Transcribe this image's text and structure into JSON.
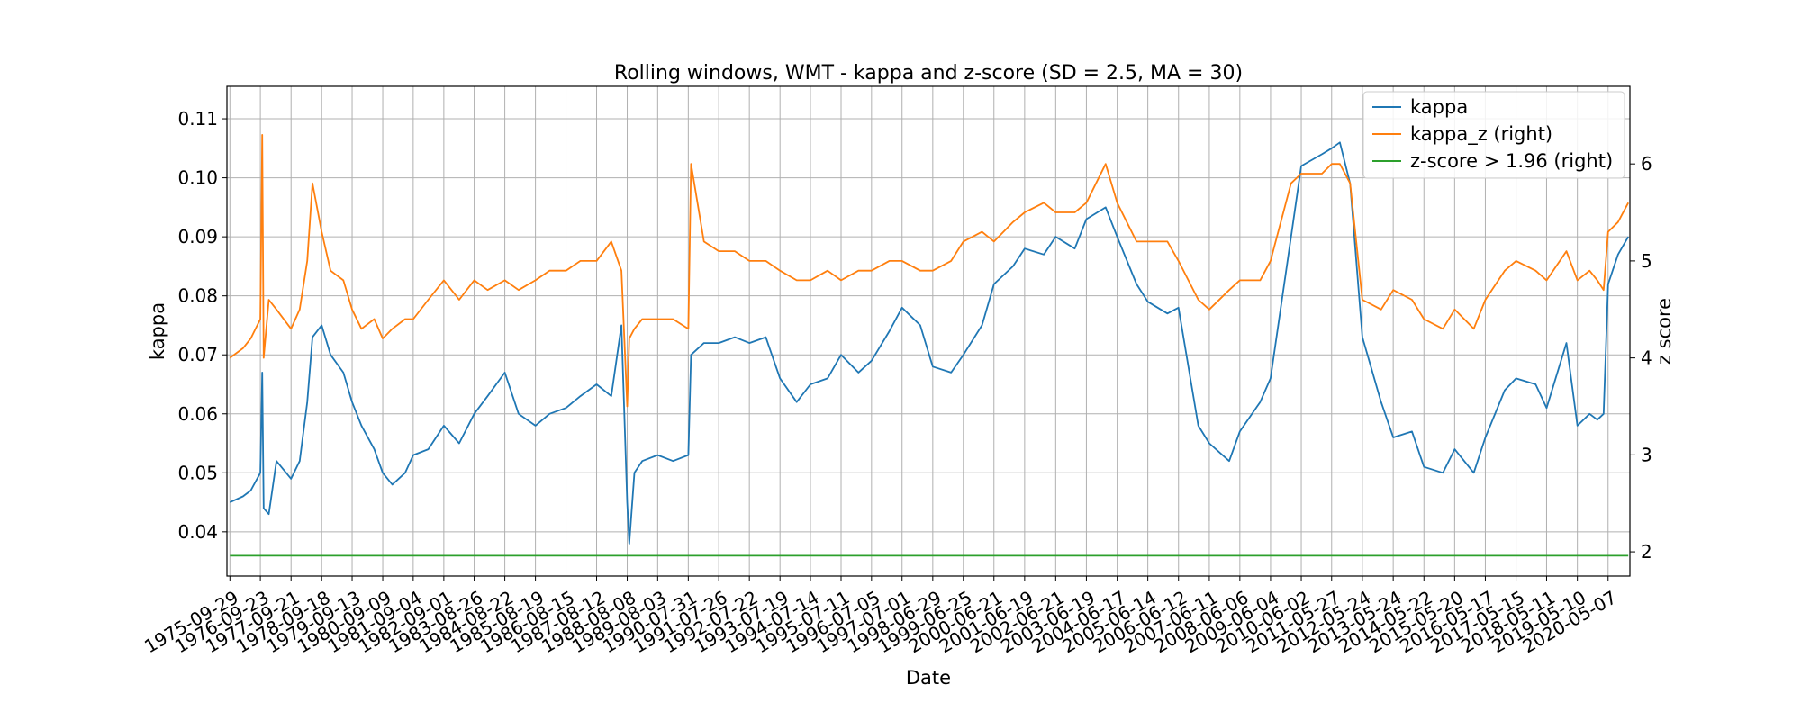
{
  "chart_data": {
    "type": "line",
    "title": "Rolling windows, WMT - kappa and z-score (SD = 2.5, MA = 30)",
    "xlabel": "Date",
    "ylabel": "kappa",
    "ylabel_right": "z score",
    "grid": true,
    "legend_position": "top-right",
    "ylim": [
      0.0325,
      0.1155
    ],
    "ylim_right": [
      1.75,
      6.8
    ],
    "yticks": [
      "0.04",
      "0.05",
      "0.06",
      "0.07",
      "0.08",
      "0.09",
      "0.10",
      "0.11"
    ],
    "yticks_right": [
      "2",
      "3",
      "4",
      "5",
      "6"
    ],
    "xticks": [
      "1975-09-29",
      "1976-09-23",
      "1977-09-21",
      "1978-09-18",
      "1979-09-13",
      "1980-09-09",
      "1981-09-04",
      "1982-09-01",
      "1983-08-26",
      "1984-08-22",
      "1985-08-19",
      "1986-08-15",
      "1987-08-12",
      "1988-08-08",
      "1989-08-03",
      "1990-07-31",
      "1991-07-26",
      "1992-07-22",
      "1993-07-19",
      "1994-07-14",
      "1995-07-11",
      "1996-07-05",
      "1997-07-01",
      "1998-06-29",
      "1999-06-25",
      "2000-06-21",
      "2001-06-19",
      "2002-06-21",
      "2003-06-19",
      "2004-06-17",
      "2005-06-14",
      "2006-06-12",
      "2007-06-11",
      "2008-06-06",
      "2009-06-04",
      "2010-06-02",
      "2011-05-27",
      "2012-05-24",
      "2013-05-24",
      "2014-05-22",
      "2015-05-20",
      "2016-05-17",
      "2017-05-15",
      "2018-05-11",
      "2019-05-10",
      "2020-05-07"
    ],
    "series": [
      {
        "name": "kappa",
        "axis": "left",
        "color": "#1f77b4",
        "x": [
          "1975-09-29",
          "1976-03-01",
          "1976-06-01",
          "1976-09-23",
          "1976-10-15",
          "1976-11-01",
          "1977-01-01",
          "1977-04-01",
          "1977-09-21",
          "1978-01-01",
          "1978-04-01",
          "1978-06-01",
          "1978-09-18",
          "1979-01-01",
          "1979-06-01",
          "1979-09-13",
          "1980-01-01",
          "1980-06-01",
          "1980-09-09",
          "1981-01-01",
          "1981-06-01",
          "1981-09-04",
          "1982-03-01",
          "1982-09-01",
          "1983-03-01",
          "1983-08-26",
          "1984-02-01",
          "1984-08-22",
          "1985-02-01",
          "1985-08-19",
          "1986-02-01",
          "1986-08-15",
          "1987-02-01",
          "1987-08-12",
          "1988-02-01",
          "1988-06-01",
          "1988-08-08",
          "1988-09-01",
          "1988-11-01",
          "1989-02-01",
          "1989-08-03",
          "1990-02-01",
          "1990-07-31",
          "1990-09-01",
          "1991-02-01",
          "1991-07-26",
          "1992-02-01",
          "1992-07-22",
          "1993-02-01",
          "1993-07-19",
          "1994-02-01",
          "1994-07-14",
          "1995-02-01",
          "1995-07-11",
          "1996-02-01",
          "1996-07-05",
          "1997-02-01",
          "1997-07-01",
          "1998-02-01",
          "1998-06-29",
          "1999-02-01",
          "1999-06-25",
          "2000-02-01",
          "2000-06-21",
          "2001-02-01",
          "2001-06-19",
          "2002-02-01",
          "2002-06-21",
          "2003-02-01",
          "2003-06-19",
          "2004-02-01",
          "2004-06-17",
          "2005-02-01",
          "2005-06-14",
          "2006-02-01",
          "2006-06-12",
          "2007-02-01",
          "2007-06-11",
          "2008-02-01",
          "2008-06-06",
          "2009-02-01",
          "2009-06-04",
          "2010-02-01",
          "2010-06-02",
          "2011-02-01",
          "2011-05-27",
          "2011-09-01",
          "2012-01-01",
          "2012-05-24",
          "2013-01-01",
          "2013-05-24",
          "2014-01-01",
          "2014-05-22",
          "2015-01-01",
          "2015-05-20",
          "2016-01-01",
          "2016-05-17",
          "2017-01-01",
          "2017-05-15",
          "2018-01-01",
          "2018-05-11",
          "2019-01-01",
          "2019-05-10",
          "2019-10-01",
          "2020-01-01",
          "2020-03-15",
          "2020-05-07",
          "2020-09-01",
          "2021-01-01"
        ],
        "y": [
          0.045,
          0.046,
          0.047,
          0.05,
          0.067,
          0.044,
          0.043,
          0.052,
          0.049,
          0.052,
          0.062,
          0.073,
          0.075,
          0.07,
          0.067,
          0.062,
          0.058,
          0.054,
          0.05,
          0.048,
          0.05,
          0.053,
          0.054,
          0.058,
          0.055,
          0.06,
          0.063,
          0.067,
          0.06,
          0.058,
          0.06,
          0.061,
          0.063,
          0.065,
          0.063,
          0.075,
          0.045,
          0.038,
          0.05,
          0.052,
          0.053,
          0.052,
          0.053,
          0.07,
          0.072,
          0.072,
          0.073,
          0.072,
          0.073,
          0.066,
          0.062,
          0.065,
          0.066,
          0.07,
          0.067,
          0.069,
          0.074,
          0.078,
          0.075,
          0.068,
          0.067,
          0.07,
          0.075,
          0.082,
          0.085,
          0.088,
          0.087,
          0.09,
          0.088,
          0.093,
          0.095,
          0.09,
          0.082,
          0.079,
          0.077,
          0.078,
          0.058,
          0.055,
          0.052,
          0.057,
          0.062,
          0.066,
          0.09,
          0.102,
          0.104,
          0.105,
          0.106,
          0.099,
          0.073,
          0.062,
          0.056,
          0.057,
          0.051,
          0.05,
          0.054,
          0.05,
          0.056,
          0.064,
          0.066,
          0.065,
          0.061,
          0.072,
          0.058,
          0.06,
          0.059,
          0.06,
          0.082,
          0.087,
          0.09
        ]
      },
      {
        "name": "kappa_z (right)",
        "axis": "right",
        "color": "#ff7f0e",
        "x": [
          "1975-09-29",
          "1976-03-01",
          "1976-06-01",
          "1976-09-23",
          "1976-10-15",
          "1976-11-01",
          "1977-01-01",
          "1977-04-01",
          "1977-09-21",
          "1978-01-01",
          "1978-04-01",
          "1978-06-01",
          "1978-09-18",
          "1979-01-01",
          "1979-06-01",
          "1979-09-13",
          "1980-01-01",
          "1980-06-01",
          "1980-09-09",
          "1981-01-01",
          "1981-06-01",
          "1981-09-04",
          "1982-03-01",
          "1982-09-01",
          "1983-03-01",
          "1983-08-26",
          "1984-02-01",
          "1984-08-22",
          "1985-02-01",
          "1985-08-19",
          "1986-02-01",
          "1986-08-15",
          "1987-02-01",
          "1987-08-12",
          "1988-02-01",
          "1988-06-01",
          "1988-08-08",
          "1988-09-01",
          "1988-11-01",
          "1989-02-01",
          "1989-08-03",
          "1990-02-01",
          "1990-07-31",
          "1990-09-01",
          "1991-02-01",
          "1991-07-26",
          "1992-02-01",
          "1992-07-22",
          "1993-02-01",
          "1993-07-19",
          "1994-02-01",
          "1994-07-14",
          "1995-02-01",
          "1995-07-11",
          "1996-02-01",
          "1996-07-05",
          "1997-02-01",
          "1997-07-01",
          "1998-02-01",
          "1998-06-29",
          "1999-02-01",
          "1999-06-25",
          "2000-02-01",
          "2000-06-21",
          "2001-02-01",
          "2001-06-19",
          "2002-02-01",
          "2002-06-21",
          "2003-02-01",
          "2003-06-19",
          "2004-02-01",
          "2004-06-17",
          "2005-02-01",
          "2005-06-14",
          "2006-02-01",
          "2006-06-12",
          "2007-02-01",
          "2007-06-11",
          "2008-02-01",
          "2008-06-06",
          "2009-02-01",
          "2009-06-04",
          "2010-02-01",
          "2010-06-02",
          "2011-02-01",
          "2011-05-27",
          "2011-09-01",
          "2012-01-01",
          "2012-05-24",
          "2013-01-01",
          "2013-05-24",
          "2014-01-01",
          "2014-05-22",
          "2015-01-01",
          "2015-05-20",
          "2016-01-01",
          "2016-05-17",
          "2017-01-01",
          "2017-05-15",
          "2018-01-01",
          "2018-05-11",
          "2019-01-01",
          "2019-05-10",
          "2019-10-01",
          "2020-01-01",
          "2020-03-15",
          "2020-05-07",
          "2020-09-01",
          "2021-01-01"
        ],
        "y": [
          4.0,
          4.1,
          4.2,
          4.4,
          6.3,
          4.0,
          4.6,
          4.5,
          4.3,
          4.5,
          5.0,
          5.8,
          5.3,
          4.9,
          4.8,
          4.5,
          4.3,
          4.4,
          4.2,
          4.3,
          4.4,
          4.4,
          4.6,
          4.8,
          4.6,
          4.8,
          4.7,
          4.8,
          4.7,
          4.8,
          4.9,
          4.9,
          5.0,
          5.0,
          5.2,
          4.9,
          3.5,
          4.2,
          4.3,
          4.4,
          4.4,
          4.4,
          4.3,
          6.0,
          5.2,
          5.1,
          5.1,
          5.0,
          5.0,
          4.9,
          4.8,
          4.8,
          4.9,
          4.8,
          4.9,
          4.9,
          5.0,
          5.0,
          4.9,
          4.9,
          5.0,
          5.2,
          5.3,
          5.2,
          5.4,
          5.5,
          5.6,
          5.5,
          5.5,
          5.6,
          6.0,
          5.6,
          5.2,
          5.2,
          5.2,
          5.0,
          4.6,
          4.5,
          4.7,
          4.8,
          4.8,
          5.0,
          5.8,
          5.9,
          5.9,
          6.0,
          6.0,
          5.8,
          4.6,
          4.5,
          4.7,
          4.6,
          4.4,
          4.3,
          4.5,
          4.3,
          4.6,
          4.9,
          5.0,
          4.9,
          4.8,
          5.1,
          4.8,
          4.9,
          4.8,
          4.7,
          5.3,
          5.4,
          5.6
        ]
      },
      {
        "name": "z-score > 1.96 (right)",
        "axis": "right",
        "color": "#2ca02c",
        "x": [
          "1975-09-29",
          "2021-01-01"
        ],
        "y": [
          1.96,
          1.96
        ]
      }
    ]
  }
}
